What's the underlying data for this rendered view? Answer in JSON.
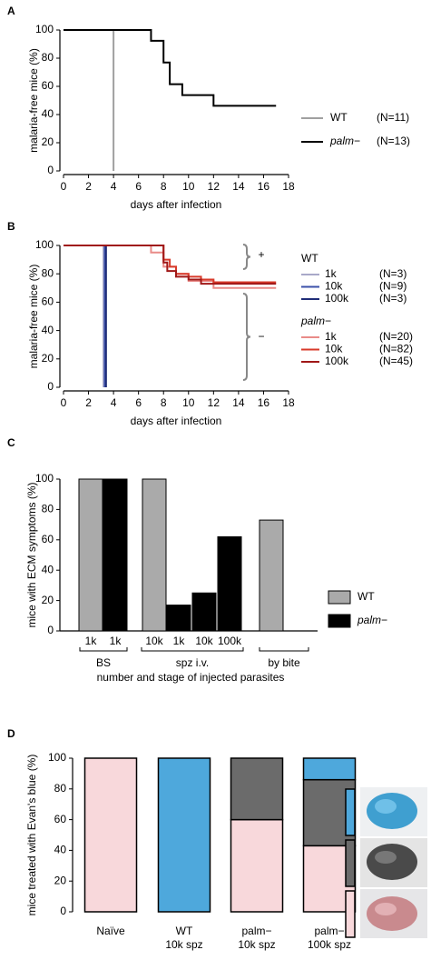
{
  "chart_data": [
    {
      "type": "line",
      "panel": "A",
      "step": true,
      "xlabel": "days after infection",
      "ylabel": "malaria-free mice (%)",
      "xlim": [
        0,
        18
      ],
      "xticks": [
        0,
        2,
        4,
        6,
        8,
        10,
        12,
        14,
        16,
        18
      ],
      "ylim": [
        0,
        100
      ],
      "yticks": [
        0,
        20,
        40,
        60,
        80,
        100
      ],
      "series": [
        {
          "name": "WT",
          "legend_note": "(N=11)",
          "color": "#a0a0a0",
          "x": [
            0,
            4
          ],
          "values": [
            100,
            0
          ]
        },
        {
          "name": "palm−",
          "italic": true,
          "legend_note": "(N=13)",
          "color": "#000000",
          "x": [
            0,
            7,
            8,
            8.5,
            9.5,
            12,
            17
          ],
          "values": [
            100,
            92.3,
            76.9,
            61.5,
            53.8,
            46.2,
            46.2
          ]
        }
      ]
    },
    {
      "type": "line",
      "panel": "B",
      "step": true,
      "xlabel": "days after infection",
      "ylabel": "malaria-free mice (%)",
      "xlim": [
        0,
        18
      ],
      "xticks": [
        0,
        2,
        4,
        6,
        8,
        10,
        12,
        14,
        16,
        18
      ],
      "ylim": [
        0,
        100
      ],
      "yticks": [
        0,
        20,
        40,
        60,
        80,
        100
      ],
      "annotations": [
        {
          "text": "+"
        },
        {
          "text": "−"
        }
      ],
      "series_groups": [
        {
          "name": "WT",
          "series": [
            {
              "name": "1k",
              "legend_note": "(N=3)",
              "color": "#a9a9c9",
              "x": [
                0,
                3.2
              ],
              "values": [
                100,
                0
              ]
            },
            {
              "name": "10k",
              "legend_note": "(N=9)",
              "color": "#3b50aa",
              "x": [
                0,
                3.3
              ],
              "values": [
                100,
                0
              ]
            },
            {
              "name": "100k",
              "legend_note": "(N=3)",
              "color": "#1f2d78",
              "x": [
                0,
                3.4
              ],
              "values": [
                100,
                0
              ]
            }
          ]
        },
        {
          "name": "palm−",
          "italic": true,
          "series": [
            {
              "name": "1k",
              "legend_note": "(N=20)",
              "color": "#e98b88",
              "x": [
                0,
                7,
                8,
                9,
                10,
                12,
                17
              ],
              "values": [
                100,
                95,
                85,
                80,
                75,
                70,
                70
              ]
            },
            {
              "name": "10k",
              "legend_note": "(N=82)",
              "color": "#d83a2a",
              "x": [
                0,
                8,
                8.5,
                9,
                10,
                11,
                12,
                17
              ],
              "values": [
                100,
                90,
                85,
                80,
                78,
                76,
                74,
                74
              ]
            },
            {
              "name": "100k",
              "legend_note": "(N=45)",
              "color": "#a01818",
              "x": [
                0,
                8,
                8.3,
                9,
                10,
                11,
                17
              ],
              "values": [
                100,
                88,
                82,
                78,
                76,
                73,
                73
              ]
            }
          ]
        }
      ]
    },
    {
      "type": "bar",
      "panel": "C",
      "xlabel": "number and stage of injected parasites",
      "ylabel": "mice with ECM symptoms (%)",
      "categories": [
        "1k",
        "1k",
        "10k",
        "1k",
        "10k",
        "100k",
        null
      ],
      "groups": [
        {
          "label": "BS",
          "size": 2
        },
        {
          "label": "spz i.v.",
          "size": 4
        },
        {
          "label": "by bite",
          "size": 1
        }
      ],
      "ylim": [
        0,
        100
      ],
      "yticks": [
        0,
        20,
        40,
        60,
        80,
        100
      ],
      "series": [
        {
          "name": "WT",
          "color": "#aaaaaa",
          "values": [
            100,
            null,
            100,
            null,
            null,
            null,
            73
          ]
        },
        {
          "name": "palm−",
          "italic": true,
          "color": "#000000",
          "values": [
            null,
            100,
            null,
            17,
            25,
            62,
            null
          ]
        }
      ]
    },
    {
      "type": "stacked-bar",
      "panel": "D",
      "ylabel": "mice treated with Evan's blue (%)",
      "categories": [
        [
          "Naïve"
        ],
        [
          "WT",
          "10k spz"
        ],
        [
          "palm−",
          "10k spz"
        ],
        [
          "palm−",
          "100k spz"
        ]
      ],
      "ylim": [
        0,
        100
      ],
      "yticks": [
        0,
        20,
        40,
        60,
        80,
        100
      ],
      "series": [
        {
          "color": "#f8d8db",
          "values": [
            100,
            0,
            60,
            43
          ]
        },
        {
          "color": "#6b6b6b",
          "values": [
            0,
            0,
            40,
            43
          ]
        },
        {
          "color": "#4ea8dc",
          "values": [
            0,
            100,
            0,
            14
          ]
        }
      ]
    }
  ]
}
